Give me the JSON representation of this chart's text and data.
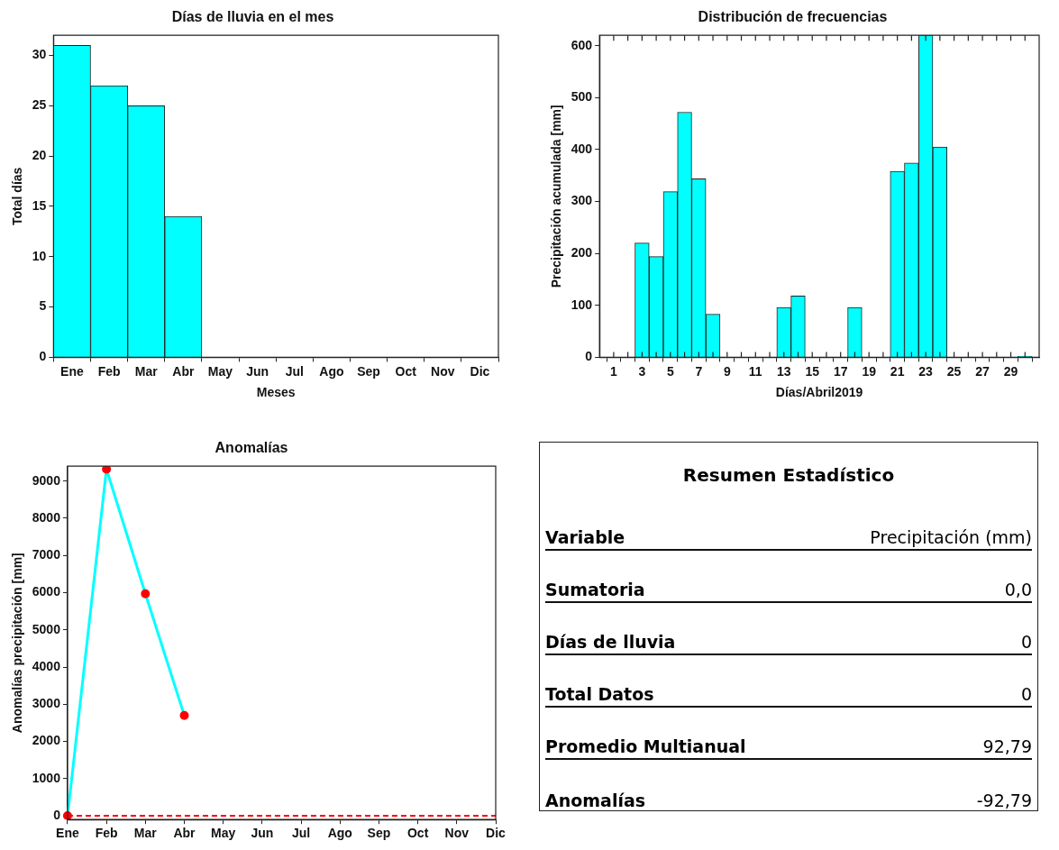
{
  "chart_data": [
    {
      "type": "bar",
      "title": "Días de lluvia en el mes",
      "xlabel": "Meses",
      "ylabel": "Total días",
      "categories": [
        "Ene",
        "Feb",
        "Mar",
        "Abr",
        "May",
        "Jun",
        "Jul",
        "Ago",
        "Sep",
        "Oct",
        "Nov",
        "Dic"
      ],
      "values": [
        31,
        27,
        25,
        14,
        null,
        null,
        null,
        null,
        null,
        null,
        null,
        null
      ],
      "color": "#00ffff",
      "ylim": [
        0,
        32
      ],
      "yticks": [
        0,
        5,
        10,
        15,
        20,
        25,
        30
      ],
      "grid": false,
      "legend": false
    },
    {
      "type": "bar",
      "title": "Distribución de frecuencias",
      "xlabel": "Días/Abril2019",
      "ylabel": "Precipitación acumulada [mm]",
      "x": [
        3,
        4,
        5,
        6,
        7,
        8,
        13,
        14,
        18,
        21,
        22,
        23,
        24,
        30
      ],
      "values": [
        220,
        194,
        319,
        472,
        344,
        83,
        96,
        118,
        96,
        358,
        374,
        620,
        405,
        2
      ],
      "color": "#00ffff",
      "xlim": [
        0,
        31
      ],
      "xticks": [
        1,
        {
          "value": 2,
          "label": null
        },
        3,
        {
          "value": 4,
          "label": null
        },
        5,
        {
          "value": 6,
          "label": null
        },
        7,
        {
          "value": 8,
          "label": null
        },
        9,
        {
          "value": 10,
          "label": null
        },
        11,
        {
          "value": 12,
          "label": null
        },
        13,
        {
          "value": 14,
          "label": null
        },
        15,
        {
          "value": 16,
          "label": null
        },
        17,
        {
          "value": 18,
          "label": null
        },
        19,
        {
          "value": 20,
          "label": null
        },
        21,
        {
          "value": 22,
          "label": null
        },
        23,
        {
          "value": 24,
          "label": null
        },
        25,
        {
          "value": 26,
          "label": null
        },
        27,
        {
          "value": 28,
          "label": null
        },
        29,
        {
          "value": 30,
          "label": null
        }
      ],
      "ylim": [
        0,
        620
      ],
      "yticks": [
        0,
        100,
        200,
        300,
        400,
        500,
        600
      ],
      "grid": false,
      "legend": false
    },
    {
      "type": "line",
      "title": "Anomalías",
      "ylabel": "Anomalías precipitación [mm]",
      "categories": [
        "Ene",
        "Feb",
        "Mar",
        "Abr",
        "May",
        "Jun",
        "Jul",
        "Ago",
        "Sep",
        "Oct",
        "Nov",
        "Dic"
      ],
      "series": [
        {
          "color": "#00ffff",
          "colors": [
            "#ff0000",
            "#ff0000",
            "#ff0000",
            "#ff0000",
            null,
            null,
            null,
            null,
            null,
            null,
            null,
            null
          ],
          "values": [
            0,
            9320,
            5970,
            2700,
            null,
            null,
            null,
            null,
            null,
            null,
            null,
            null
          ]
        }
      ],
      "marker": "circle",
      "line_style": "solid",
      "ylim": [
        -100,
        9400
      ],
      "yticks": [
        0,
        1000,
        2000,
        3000,
        4000,
        5000,
        6000,
        7000,
        8000,
        9000
      ],
      "ref_lines": [
        {
          "axis": "y",
          "value": 0,
          "color": "#ff0000",
          "line_style": "dashed"
        }
      ],
      "grid": false,
      "legend": false
    },
    {
      "type": "other",
      "title": "Resumen Estadístico",
      "annotations": [
        "Variable",
        "Precipitación (mm)",
        "Sumatoria",
        "0,0",
        "Días de lluvia",
        "0",
        "Total Datos",
        "0",
        "Promedio Multianual",
        "92,79",
        "Anomalías",
        "-92,79"
      ]
    }
  ]
}
